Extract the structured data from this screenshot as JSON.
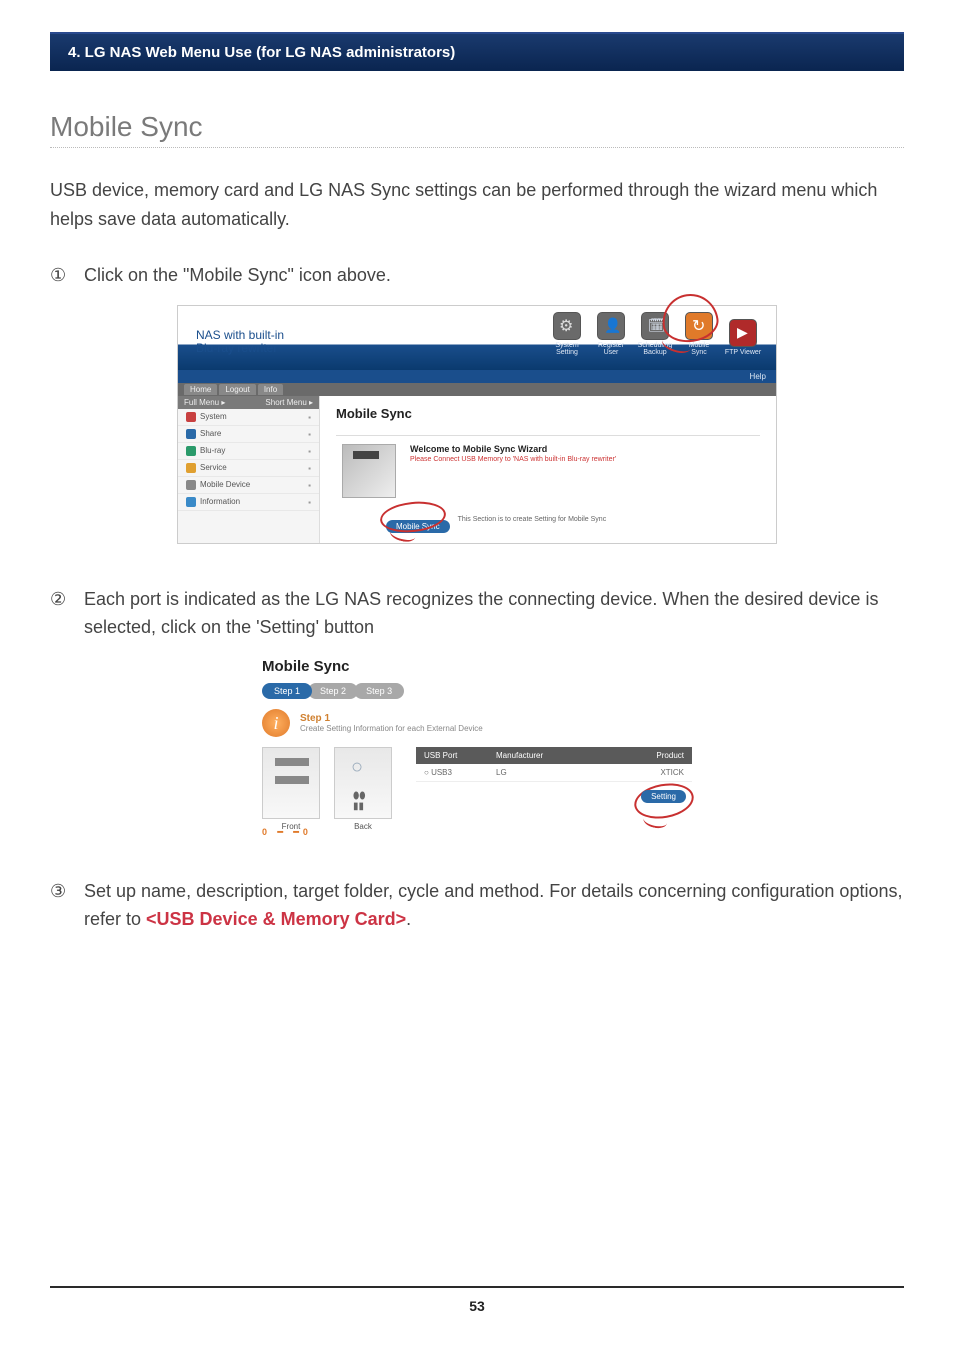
{
  "header": "4. LG NAS Web Menu Use (for LG NAS administrators)",
  "section_title": "Mobile Sync",
  "intro": "USB device, memory card and LG NAS Sync settings can be performed through the wizard menu which helps save data automatically.",
  "step1_num": "①",
  "step1_text": "Click on the \"Mobile Sync\" icon above.",
  "step2_num": "②",
  "step2_text": "Each port is indicated as the LG NAS recognizes the connecting device. When the desired device is selected, click on the 'Setting' button",
  "step3_num": "③",
  "step3_text_a": "Set up name, description, target folder, cycle and method. For details concerning configuration options, refer to ",
  "step3_link": "<USB Device & Memory Card>",
  "step3_text_b": ".",
  "page_number": "53",
  "shot1": {
    "brand_l1": "NAS with built-in",
    "brand_l2": "Blu-ray rewriter",
    "help": "Help",
    "topicons": {
      "system_setting": "System Setting",
      "register_user": "Register User",
      "scheduling": "Scheduling Backup",
      "mobile_sync": "Mobile Sync",
      "ftp_viewer": "FTP Viewer"
    },
    "tabs": {
      "home": "Home",
      "logout": "Logout",
      "info": "Info"
    },
    "side_header_l": "Full Menu ▸",
    "side_header_r": "Short Menu ▸",
    "side_items": [
      {
        "label": "System",
        "color": "#c84040"
      },
      {
        "label": "Share",
        "color": "#2a6aa8"
      },
      {
        "label": "Blu-ray",
        "color": "#2a9a6a"
      },
      {
        "label": "Service",
        "color": "#e0a030"
      },
      {
        "label": "Mobile Device",
        "color": "#888888"
      },
      {
        "label": "Information",
        "color": "#3a8ac8"
      }
    ],
    "main_title": "Mobile Sync",
    "wizard_title": "Welcome to Mobile Sync Wizard",
    "wizard_sub": "Please Connect USB Memory to 'NAS with built-in Blu-ray rewriter'",
    "pill": "Mobile Sync",
    "pill_desc": "This Section is to create Setting for Mobile Sync"
  },
  "shot2": {
    "title": "Mobile Sync",
    "steps": [
      "Step 1",
      "Step 2",
      "Step 3"
    ],
    "step_label": "Step 1",
    "step_sub": "Create Setting Information for each External Device",
    "front": "Front",
    "back": "Back",
    "port_marks": "0 ━ ━0",
    "columns": [
      "USB Port",
      "Manufacturer",
      "Product"
    ],
    "row": [
      "USB3",
      "LG",
      "XTICK"
    ],
    "setting_btn": "Setting"
  }
}
